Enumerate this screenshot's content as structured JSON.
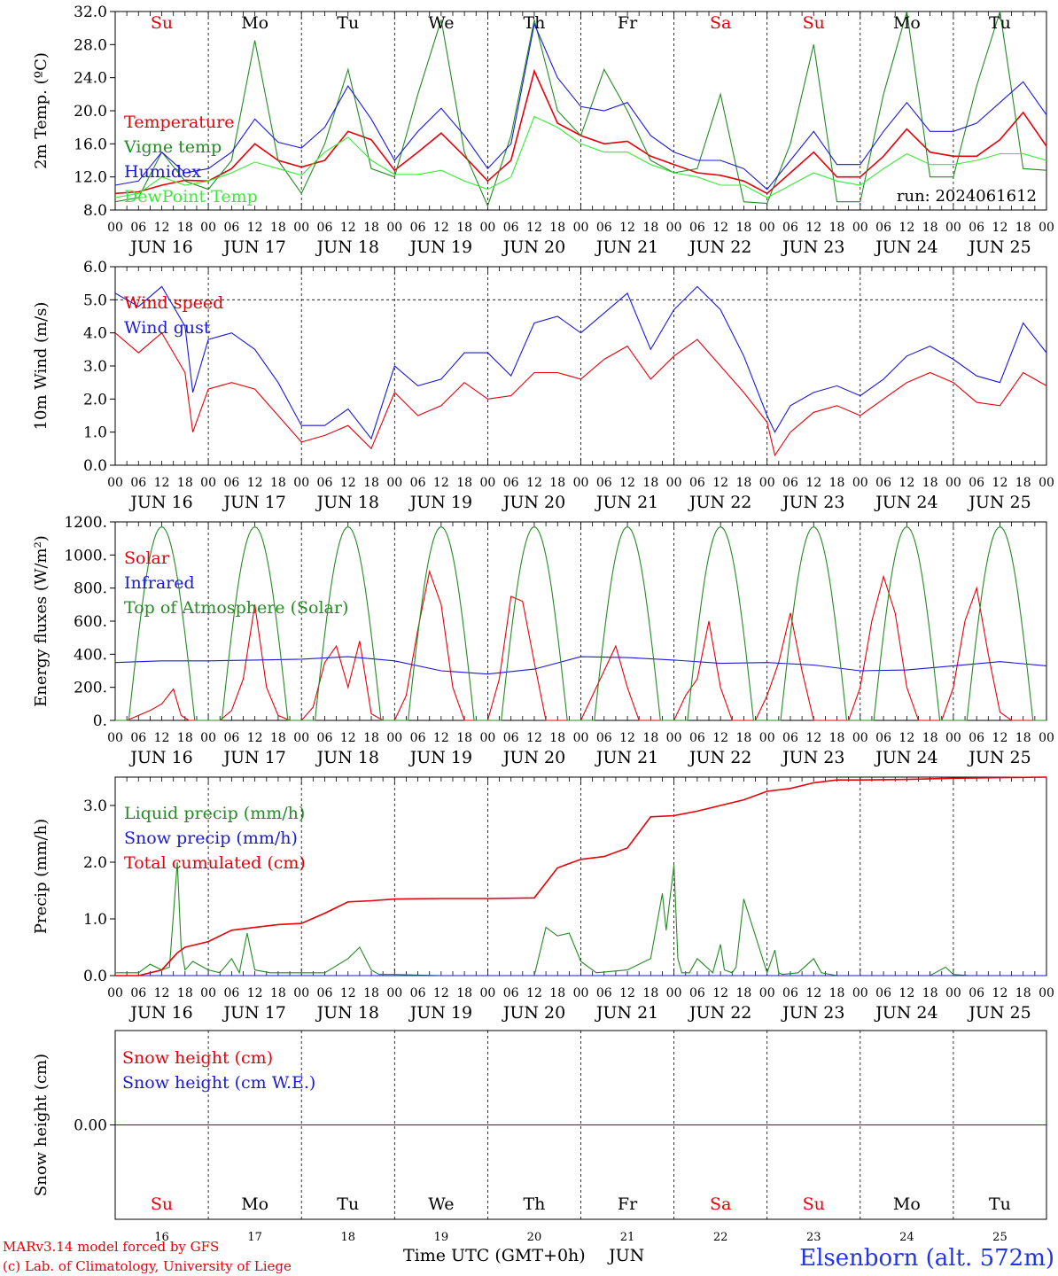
{
  "days": [
    "16",
    "17",
    "18",
    "19",
    "20",
    "21",
    "22",
    "23",
    "24",
    "25"
  ],
  "weekdays": [
    "Su",
    "Mo",
    "Tu",
    "We",
    "Th",
    "Fr",
    "Sa",
    "Su",
    "Mo",
    "Tu"
  ],
  "weekday_colors": [
    "#e8000a",
    "#000000",
    "#000000",
    "#000000",
    "#000000",
    "#000000",
    "#e8000a",
    "#e8000a",
    "#000000",
    "#000000"
  ],
  "hour_ticks": [
    "00",
    "06",
    "12",
    "18"
  ],
  "date_labels": [
    "JUN 16",
    "JUN 17",
    "JUN 18",
    "JUN 19",
    "JUN 20",
    "JUN 21",
    "JUN 22",
    "JUN 23",
    "JUN 24",
    "JUN 25"
  ],
  "month_label": "JUN",
  "xlabel": "Time UTC (GMT+0h)",
  "footer": {
    "model": "MARv3.14 model forced by GFS",
    "credit": "(c) Lab. of Climatology, University of Liege",
    "station": "Elsenborn (alt. 572m)"
  },
  "chart_data": [
    {
      "id": "temp",
      "type": "line",
      "ylabel": "2m Temp. (ºC)",
      "ylim": [
        8,
        32
      ],
      "yticks": [
        "8.0",
        "12.0",
        "16.0",
        "20.0",
        "24.0",
        "28.0",
        "32.0"
      ],
      "annotation": "run: 2024061612",
      "series": [
        {
          "name": "Temperature",
          "color": "#e8000a",
          "x": [
            0,
            6,
            12,
            18,
            24,
            30,
            36,
            42,
            48,
            54,
            60,
            66,
            72,
            78,
            84,
            90,
            96,
            102,
            108,
            114,
            120,
            126,
            132,
            138,
            144,
            150,
            156,
            162,
            168,
            174,
            180,
            186,
            192,
            198,
            204,
            210,
            216,
            222,
            228,
            234,
            240
          ],
          "y": [
            10,
            10.2,
            11,
            11.6,
            11.5,
            13,
            16,
            14,
            13.2,
            14,
            17.5,
            16.5,
            12.8,
            15,
            17.3,
            14.5,
            11.5,
            14,
            24.8,
            18.5,
            17,
            16,
            16.3,
            14.5,
            13.5,
            12.5,
            12.2,
            11.5,
            10,
            12.5,
            15,
            12,
            12,
            14.5,
            17.8,
            15,
            14.5,
            14.5,
            16.5,
            19.8,
            15.7
          ]
        },
        {
          "name": "Vigne temp",
          "color": "#228b22",
          "x": [
            0,
            6,
            12,
            18,
            24,
            30,
            36,
            42,
            48,
            54,
            60,
            66,
            72,
            78,
            84,
            90,
            96,
            102,
            108,
            114,
            120,
            126,
            132,
            138,
            144,
            150,
            156,
            162,
            168,
            174,
            180,
            186,
            192,
            198,
            204,
            210,
            216,
            222,
            228,
            234,
            240
          ],
          "y": [
            9,
            9.5,
            15,
            11.5,
            10.5,
            14,
            28.5,
            14,
            10,
            16,
            25,
            13,
            12,
            22,
            31,
            15,
            8.5,
            17,
            31,
            20,
            17,
            25,
            20,
            14,
            12.5,
            13,
            22,
            9,
            8.8,
            16,
            28,
            9,
            9,
            22,
            32,
            12,
            12,
            23,
            32,
            13,
            12.8
          ]
        },
        {
          "name": "Humidex",
          "color": "#1a1ad8",
          "x": [
            0,
            6,
            12,
            18,
            24,
            30,
            36,
            42,
            48,
            54,
            60,
            66,
            72,
            78,
            84,
            90,
            96,
            102,
            108,
            114,
            120,
            126,
            132,
            138,
            144,
            150,
            156,
            162,
            168,
            174,
            180,
            186,
            192,
            198,
            204,
            210,
            216,
            222,
            228,
            234,
            240
          ],
          "y": [
            11,
            11.5,
            15,
            12.5,
            13,
            15,
            19,
            16.2,
            15.5,
            18,
            23,
            19,
            14,
            17.5,
            20.3,
            17,
            13,
            16,
            30.5,
            24,
            20.5,
            20,
            21,
            17,
            15,
            14,
            14,
            13,
            10.5,
            14,
            17.5,
            13.5,
            13.5,
            17.5,
            21,
            17.5,
            17.5,
            18.5,
            21,
            23.5,
            19.5
          ]
        },
        {
          "name": "DewPoint Temp",
          "color": "#33ee33",
          "x": [
            0,
            6,
            12,
            18,
            24,
            30,
            36,
            42,
            48,
            54,
            60,
            66,
            72,
            78,
            84,
            90,
            96,
            102,
            108,
            114,
            120,
            126,
            132,
            138,
            144,
            150,
            156,
            162,
            168,
            174,
            180,
            186,
            192,
            198,
            204,
            210,
            216,
            222,
            228,
            234,
            240
          ],
          "y": [
            9.5,
            10,
            12,
            11,
            11.5,
            12.5,
            13.8,
            13,
            12.2,
            15,
            16.8,
            14,
            12.3,
            12.3,
            12.8,
            11.5,
            10.5,
            12,
            19.3,
            18,
            16,
            15,
            15,
            13.5,
            12.5,
            12,
            11,
            11,
            9.5,
            11,
            12.5,
            11.5,
            11,
            13,
            14.8,
            13.5,
            13.5,
            14,
            14.8,
            14.8,
            14
          ]
        }
      ]
    },
    {
      "id": "wind",
      "type": "line",
      "ylabel": "10m Wind (m/s)",
      "ylim": [
        0,
        6
      ],
      "yticks": [
        "0.0",
        "1.0",
        "2.0",
        "3.0",
        "4.0",
        "5.0",
        "6.0"
      ],
      "series": [
        {
          "name": "Wind speed",
          "color": "#e8000a",
          "x": [
            0,
            6,
            12,
            18,
            20,
            24,
            30,
            36,
            42,
            48,
            54,
            60,
            66,
            72,
            78,
            84,
            90,
            96,
            102,
            108,
            114,
            120,
            126,
            132,
            138,
            144,
            150,
            156,
            162,
            168,
            170,
            174,
            180,
            186,
            192,
            198,
            204,
            210,
            216,
            222,
            228,
            234,
            240
          ],
          "y": [
            4,
            3.4,
            4,
            2.8,
            1,
            2.3,
            2.5,
            2.3,
            1.5,
            0.7,
            0.9,
            1.2,
            0.5,
            2.2,
            1.5,
            1.8,
            2.5,
            2,
            2.1,
            2.8,
            2.8,
            2.6,
            3.2,
            3.6,
            2.6,
            3.3,
            3.8,
            3,
            2.2,
            1.3,
            0.3,
            1,
            1.6,
            1.8,
            1.5,
            2,
            2.5,
            2.8,
            2.5,
            1.9,
            1.8,
            2.8,
            2.4
          ]
        },
        {
          "name": "Wind gust",
          "color": "#1a1ad8",
          "x": [
            0,
            6,
            12,
            18,
            20,
            24,
            30,
            36,
            42,
            48,
            54,
            60,
            66,
            72,
            78,
            84,
            90,
            96,
            102,
            108,
            114,
            120,
            126,
            132,
            138,
            144,
            150,
            156,
            162,
            168,
            170,
            174,
            180,
            186,
            192,
            198,
            204,
            210,
            216,
            222,
            228,
            234,
            240
          ],
          "y": [
            5.2,
            4.8,
            5.4,
            4.2,
            2.2,
            3.8,
            4,
            3.5,
            2.5,
            1.2,
            1.2,
            1.7,
            0.8,
            3,
            2.4,
            2.6,
            3.4,
            3.4,
            2.7,
            4.3,
            4.5,
            4,
            4.6,
            5.2,
            3.5,
            4.7,
            5.4,
            4.7,
            3.3,
            1.5,
            1,
            1.8,
            2.2,
            2.4,
            2.1,
            2.6,
            3.3,
            3.6,
            3.2,
            2.7,
            2.5,
            4.3,
            3.4
          ]
        }
      ]
    },
    {
      "id": "energy",
      "type": "line",
      "ylabel": "Energy fluxes (W/m²)",
      "ylim": [
        0,
        1200
      ],
      "yticks": [
        "0.",
        "200.",
        "400.",
        "600.",
        "800.",
        "1000.",
        "1200."
      ],
      "series": [
        {
          "name": "Solar",
          "color": "#e8000a",
          "x": [
            0,
            3,
            6,
            9,
            12,
            15,
            17,
            19,
            21,
            24,
            27,
            30,
            33,
            36,
            39,
            42,
            45,
            48,
            51,
            54,
            57,
            60,
            63,
            66,
            69,
            72,
            75,
            78,
            81,
            84,
            87,
            90,
            93,
            96,
            99,
            102,
            105,
            108,
            111,
            114,
            117,
            120,
            123,
            126,
            129,
            132,
            135,
            138,
            141,
            144,
            147,
            150,
            153,
            156,
            159,
            162,
            165,
            168,
            171,
            174,
            177,
            180,
            183,
            186,
            189,
            192,
            195,
            198,
            201,
            204,
            207,
            210,
            213,
            216,
            219,
            222,
            225,
            228,
            231,
            234,
            237,
            240
          ],
          "y": [
            0,
            0,
            30,
            60,
            100,
            190,
            30,
            0,
            0,
            0,
            0,
            60,
            250,
            700,
            200,
            30,
            0,
            0,
            80,
            350,
            450,
            200,
            480,
            40,
            0,
            0,
            150,
            550,
            900,
            700,
            200,
            0,
            0,
            0,
            250,
            750,
            720,
            350,
            0,
            0,
            0,
            0,
            150,
            300,
            450,
            200,
            0,
            0,
            0,
            0,
            150,
            250,
            600,
            200,
            0,
            0,
            0,
            150,
            350,
            650,
            300,
            0,
            0,
            0,
            0,
            200,
            600,
            870,
            650,
            200,
            0,
            0,
            0,
            200,
            600,
            800,
            400,
            50,
            0,
            0,
            0,
            0
          ]
        },
        {
          "name": "Infrared",
          "color": "#1a1ad8",
          "x": [
            0,
            12,
            24,
            36,
            48,
            60,
            72,
            84,
            96,
            108,
            120,
            132,
            144,
            156,
            168,
            180,
            192,
            204,
            216,
            228,
            240
          ],
          "y": [
            350,
            360,
            360,
            365,
            370,
            385,
            360,
            300,
            280,
            310,
            385,
            380,
            365,
            345,
            350,
            335,
            300,
            305,
            330,
            355,
            330
          ]
        },
        {
          "name": "Top of Atmosphere (Solar)",
          "color": "#228b22",
          "shape": "daily-sine",
          "peak": 1170,
          "rise_hour": 3.5,
          "set_hour": 20.5
        }
      ]
    },
    {
      "id": "precip",
      "type": "line",
      "ylabel": "Precip (mm/h)",
      "ylim": [
        0,
        3.5
      ],
      "yticks": [
        "0.0",
        "1.0",
        "2.0",
        "3.0"
      ],
      "series": [
        {
          "name": "Liquid precip (mm/h)",
          "color": "#228b22",
          "x": [
            0,
            6,
            9,
            12,
            14,
            16,
            17,
            18,
            20,
            24,
            27,
            30,
            32,
            34,
            36,
            40,
            44,
            48,
            54,
            60,
            63,
            66,
            68,
            72,
            84,
            96,
            108,
            111,
            114,
            117,
            120,
            124,
            132,
            138,
            141,
            142,
            144,
            145,
            146,
            148,
            150,
            154,
            156,
            157,
            159,
            160,
            162,
            168,
            170,
            171,
            172,
            176,
            180,
            182,
            186,
            192,
            204,
            210,
            214,
            216,
            220,
            224,
            240
          ],
          "y": [
            0.05,
            0.05,
            0.2,
            0.1,
            0.15,
            2,
            0.5,
            0.1,
            0.25,
            0.1,
            0.05,
            0.3,
            0.05,
            0.75,
            0.1,
            0.05,
            0.05,
            0.05,
            0.05,
            0.3,
            0.5,
            0.1,
            0.02,
            0.02,
            0,
            0,
            0,
            0.85,
            0.7,
            0.75,
            0.25,
            0.05,
            0.1,
            0.3,
            1.45,
            0.8,
            1.95,
            0.3,
            0.05,
            0.05,
            0.3,
            0.05,
            0.55,
            0.1,
            0.05,
            0.15,
            1.35,
            0.05,
            0.45,
            0.05,
            0.02,
            0.05,
            0.3,
            0.05,
            0,
            0,
            0,
            0,
            0.15,
            0.02,
            0,
            0,
            0
          ]
        },
        {
          "name": "Snow precip (mm/h)",
          "color": "#1a1ad8",
          "x": [
            0,
            240
          ],
          "y": [
            0,
            0
          ]
        },
        {
          "name": "Total cumulated (cm)",
          "color": "#e8000a",
          "x": [
            0,
            6,
            12,
            16,
            18,
            24,
            30,
            36,
            42,
            48,
            54,
            60,
            66,
            72,
            84,
            96,
            108,
            114,
            120,
            126,
            132,
            138,
            144,
            150,
            156,
            162,
            168,
            174,
            180,
            186,
            192,
            204,
            216,
            228,
            240
          ],
          "y": [
            0,
            0,
            0.1,
            0.4,
            0.5,
            0.6,
            0.8,
            0.85,
            0.9,
            0.92,
            1.1,
            1.3,
            1.32,
            1.35,
            1.36,
            1.36,
            1.37,
            1.9,
            2.05,
            2.1,
            2.25,
            2.8,
            2.82,
            2.9,
            3.0,
            3.1,
            3.25,
            3.3,
            3.4,
            3.45,
            3.45,
            3.46,
            3.48,
            3.49,
            3.5
          ]
        }
      ]
    },
    {
      "id": "snow",
      "type": "line",
      "ylabel": "Snow height (cm)",
      "ylim": [
        -1,
        1
      ],
      "yticks": [
        "0.00"
      ],
      "series": [
        {
          "name": "Snow height (cm)",
          "color": "#e8000a",
          "x": [
            0,
            240
          ],
          "y": [
            0,
            0
          ]
        },
        {
          "name": "Snow height (cm W.E.)",
          "color": "#1a1ad8",
          "x": [
            0,
            240
          ],
          "y": [
            0,
            0
          ]
        }
      ]
    }
  ]
}
